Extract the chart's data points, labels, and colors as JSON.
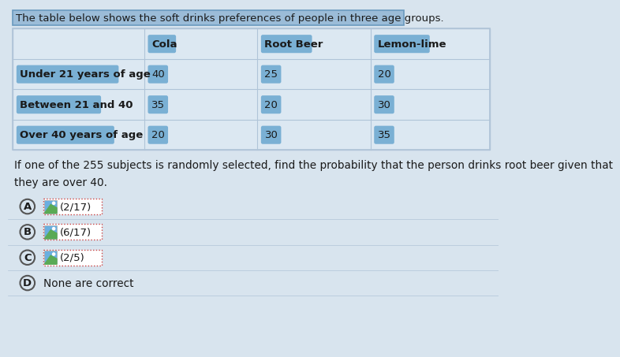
{
  "title": "The table below shows the soft drinks preferences of people in three age groups.",
  "question": "If one of the 255 subjects is randomly selected, find the probability that the person drinks root beer given that\nthey are over 40.",
  "table_headers": [
    "",
    "Cola",
    "Root Beer",
    "Lemon-lime"
  ],
  "table_rows": [
    [
      "Under 21 years of age",
      "40",
      "25",
      "20"
    ],
    [
      "Between 21 and 40",
      "35",
      "20",
      "30"
    ],
    [
      "Over 40 years of age",
      "20",
      "30",
      "35"
    ]
  ],
  "choices": [
    {
      "label": "A",
      "text": "(2/17)"
    },
    {
      "label": "B",
      "text": "(6/17)"
    },
    {
      "label": "C",
      "text": "(2/5)"
    },
    {
      "label": "D",
      "text": "None are correct"
    }
  ],
  "bg_color": "#d8e4ee",
  "table_bg_color": "#dce8f0",
  "title_bg_color": "#9bbcd8",
  "title_border_color": "#6a9abf",
  "cell_bg_color": "#dce8f2",
  "highlight_label_color": "#7ab0d4",
  "highlight_data_color": "#7ab0d4",
  "border_color": "#b0c4d8",
  "text_color": "#1a1a1a",
  "choice_bg_color": "#dce8f2",
  "choice_box_border": "#cc4444",
  "icon_sky_color": "#6aafe0",
  "icon_hill_color": "#5aaa55",
  "icon_bg_color": "#e8f0f8"
}
